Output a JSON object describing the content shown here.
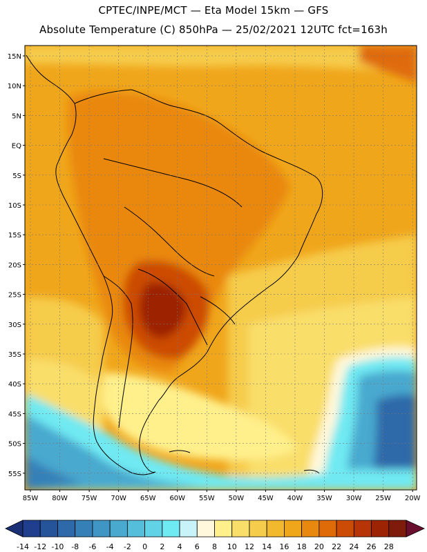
{
  "header": {
    "line1": "CPTEC/INPE/MCT —  Eta Model 15km — GFS",
    "line2": "Absolute Temperature (C) 850hPa — 25/02/2021 12UTC fct=163h"
  },
  "map": {
    "lat_labels": [
      "15N",
      "10N",
      "5N",
      "EQ",
      "5S",
      "10S",
      "15S",
      "20S",
      "25S",
      "30S",
      "35S",
      "40S",
      "45S",
      "50S",
      "55S"
    ],
    "lon_labels": [
      "85W",
      "80W",
      "75W",
      "70W",
      "65W",
      "60W",
      "55W",
      "50W",
      "45W",
      "40W",
      "35W",
      "30W",
      "25W",
      "20W"
    ]
  },
  "colorbar": {
    "labels": [
      "-14",
      "-12",
      "-10",
      "-8",
      "-6",
      "-4",
      "-2",
      "0",
      "2",
      "4",
      "6",
      "8",
      "10",
      "12",
      "14",
      "16",
      "18",
      "20",
      "22",
      "24",
      "26",
      "28"
    ],
    "colors": [
      "#1f3f8e",
      "#26549b",
      "#2e69a9",
      "#3680b8",
      "#3f96c4",
      "#49a9cf",
      "#55bedb",
      "#62d3e6",
      "#6fe9f2",
      "#c8f3f8",
      "#fff8dc",
      "#fff08c",
      "#f9de6a",
      "#f6cc4c",
      "#f2b92f",
      "#efa61a",
      "#e9880f",
      "#df6a08",
      "#cc4c06",
      "#b63405",
      "#9c2405",
      "#7f1b0a"
    ],
    "left_arrow_color": "#1b2f74",
    "right_arrow_color": "#6a0e2e"
  },
  "colors": {
    "ocean_warm": "#f0a61b",
    "ocean_mid": "#f6cc4c",
    "land_hot": "#df6a08",
    "cold_sea": "#49a9cf"
  }
}
